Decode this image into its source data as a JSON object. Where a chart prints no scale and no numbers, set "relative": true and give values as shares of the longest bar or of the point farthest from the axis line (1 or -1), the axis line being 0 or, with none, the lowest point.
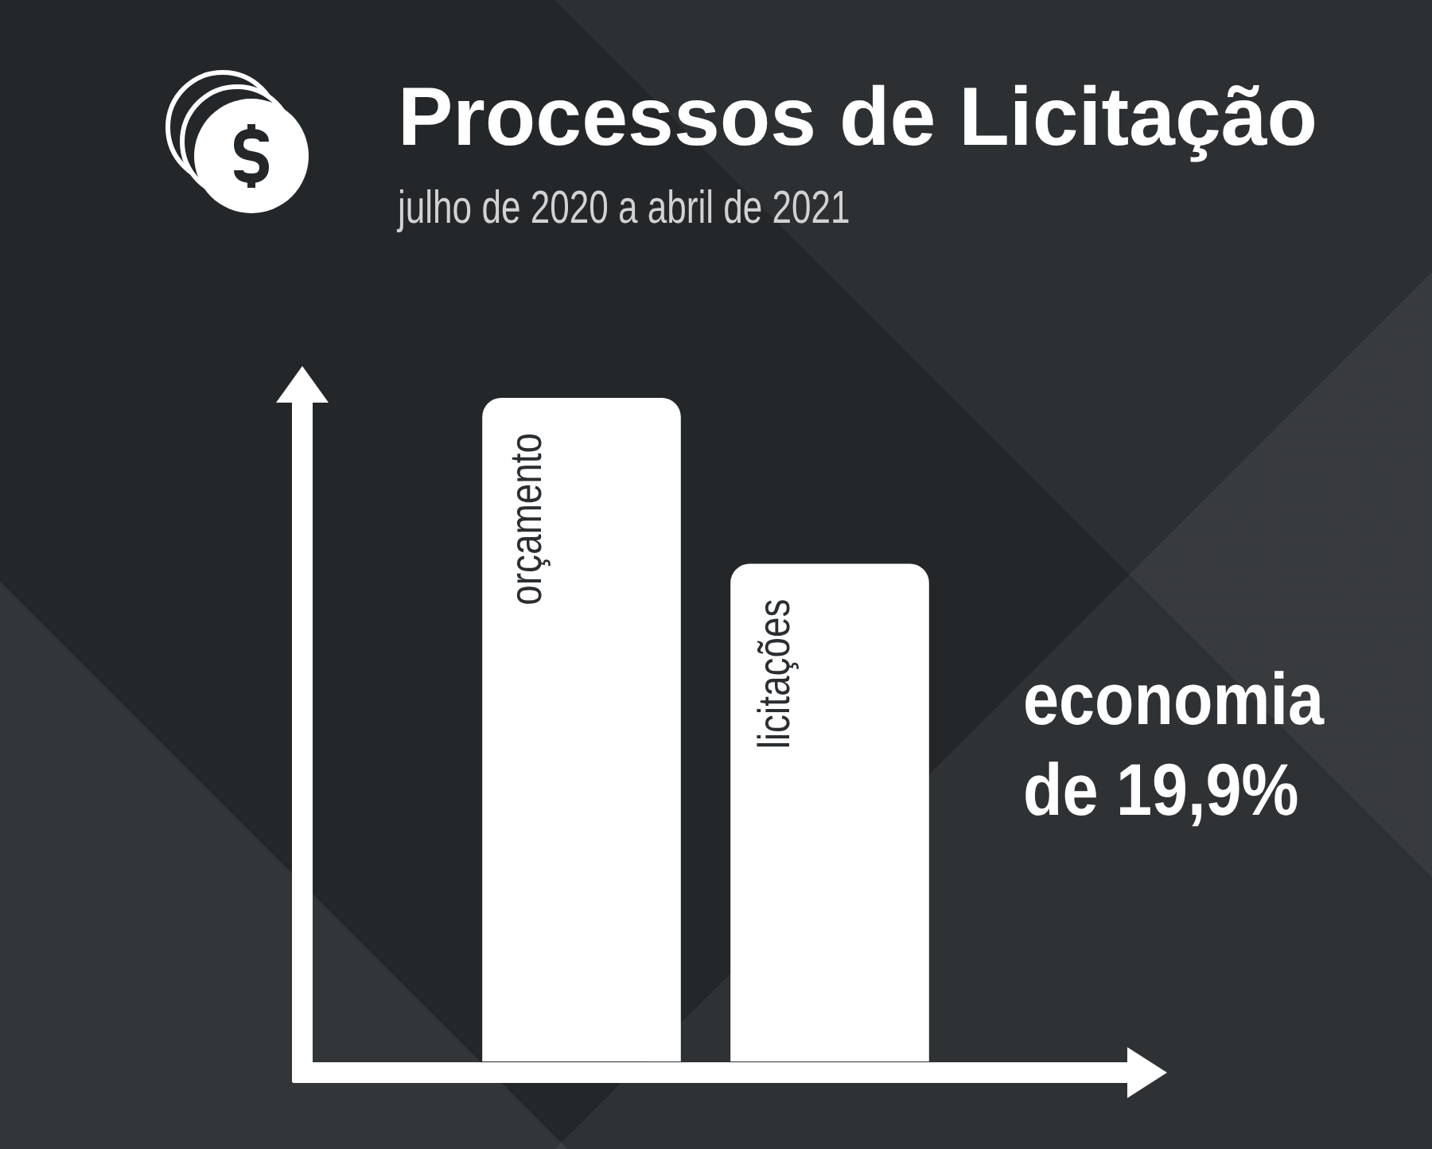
{
  "chart_data": {
    "type": "bar",
    "title": "Processos de Licitação",
    "subtitle": "julho de 2020 a abril de 2021",
    "categories": [
      "orçamento",
      "licitações"
    ],
    "values": [
      1,
      0.75
    ],
    "color": "#ffffff",
    "relative": true,
    "annotations": [
      "economia de 19,9%"
    ]
  }
}
